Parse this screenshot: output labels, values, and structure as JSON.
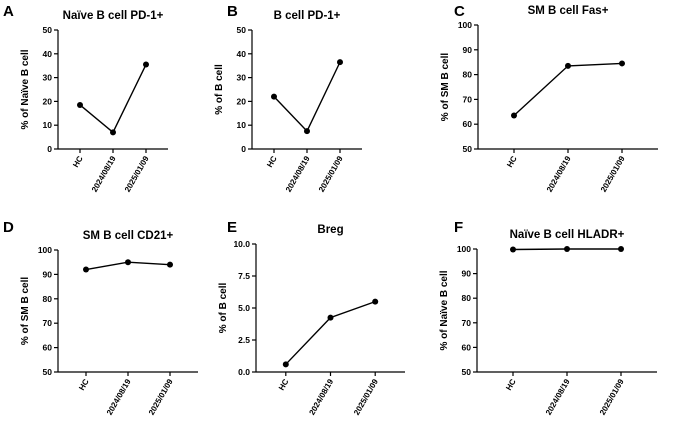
{
  "chart_data": [
    {
      "type": "line",
      "panel_label": "A",
      "title": "Naïve B cell PD-1+",
      "ylabel": "% of Naïve B cell",
      "xlabel": "",
      "categories": [
        "HC",
        "2024/08/19",
        "2025/01/09"
      ],
      "values": [
        18.5,
        7,
        35.5
      ],
      "ylim": [
        0,
        50
      ],
      "yticks": [
        "0",
        "10",
        "20",
        "30",
        "40",
        "50"
      ]
    },
    {
      "type": "line",
      "panel_label": "B",
      "title": "B cell PD-1+",
      "ylabel": "% of B cell",
      "xlabel": "",
      "categories": [
        "HC",
        "2024/08/19",
        "2025/01/09"
      ],
      "values": [
        22,
        7.5,
        36.5
      ],
      "ylim": [
        0,
        50
      ],
      "yticks": [
        "0",
        "10",
        "20",
        "30",
        "40",
        "50"
      ]
    },
    {
      "type": "line",
      "panel_label": "C",
      "title": "SM B cell Fas+",
      "ylabel": "% of SM B cell",
      "xlabel": "",
      "categories": [
        "HC",
        "2024/08/19",
        "2025/01/09"
      ],
      "values": [
        63.5,
        83.5,
        84.5
      ],
      "ylim": [
        50,
        100
      ],
      "yticks": [
        "50",
        "60",
        "70",
        "80",
        "90",
        "100"
      ]
    },
    {
      "type": "line",
      "panel_label": "D",
      "title": "SM B cell CD21+",
      "ylabel": "% of SM B cell",
      "xlabel": "",
      "categories": [
        "HC",
        "2024/08/19",
        "2025/01/09"
      ],
      "values": [
        92,
        95,
        94
      ],
      "ylim": [
        50,
        100
      ],
      "yticks": [
        "50",
        "60",
        "70",
        "80",
        "90",
        "100"
      ]
    },
    {
      "type": "line",
      "panel_label": "E",
      "title": "Breg",
      "ylabel": "% of B cell",
      "xlabel": "",
      "categories": [
        "HC",
        "2024/08/19",
        "2025/01/09"
      ],
      "values": [
        0.6,
        4.25,
        5.5
      ],
      "ylim": [
        0,
        10
      ],
      "yticks": [
        "0.0",
        "2.5",
        "5.0",
        "7.5",
        "10.0"
      ]
    },
    {
      "type": "line",
      "panel_label": "F",
      "title": "Naïve B cell HLADR+",
      "ylabel": "% of Naïve B cell",
      "xlabel": "",
      "categories": [
        "HC",
        "2024/08/19",
        "2025/01/09"
      ],
      "values": [
        99.8,
        100,
        100
      ],
      "ylim": [
        50,
        100
      ],
      "yticks": [
        "50",
        "60",
        "70",
        "80",
        "90",
        "100"
      ]
    }
  ]
}
